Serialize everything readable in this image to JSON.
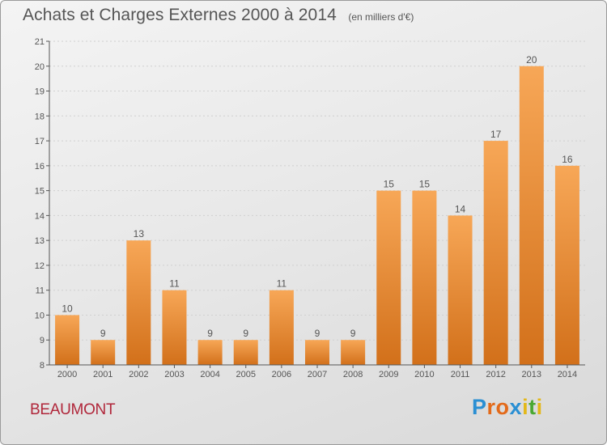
{
  "header": {
    "title": "Achats et Charges Externes 2000 à 2014",
    "subtitle": "(en milliers d'€)"
  },
  "commune": "BEAUMONT",
  "brand": {
    "letters": [
      {
        "ch": "P",
        "color": "#2a8fd3"
      },
      {
        "ch": "r",
        "color": "#e36a1a"
      },
      {
        "ch": "o",
        "color": "#e36a1a"
      },
      {
        "ch": "x",
        "color": "#2a8fd3"
      },
      {
        "ch": "i",
        "color": "#e3b81a"
      },
      {
        "ch": "t",
        "color": "#4aa832"
      },
      {
        "ch": "i",
        "color": "#e3b81a"
      }
    ]
  },
  "colors": {
    "bar_top": "#f7a757",
    "bar_bottom": "#d2701a",
    "axis": "#555555",
    "grid": "#d0d0d0",
    "title": "#555555",
    "commune": "#b0263a"
  },
  "chart_data": {
    "type": "bar",
    "title": "Achats et Charges Externes 2000 à 2014",
    "subtitle": "(en milliers d'€)",
    "xlabel": "",
    "ylabel": "",
    "categories": [
      "2000",
      "2001",
      "2002",
      "2003",
      "2004",
      "2005",
      "2006",
      "2007",
      "2008",
      "2009",
      "2010",
      "2011",
      "2012",
      "2013",
      "2014"
    ],
    "values": [
      10,
      9,
      13,
      11,
      9,
      9,
      11,
      9,
      9,
      15,
      15,
      14,
      17,
      20,
      16
    ],
    "ylim": [
      8,
      21
    ],
    "yticks": [
      8,
      9,
      10,
      11,
      12,
      13,
      14,
      15,
      16,
      17,
      18,
      19,
      20,
      21
    ],
    "grid": true,
    "legend": "none"
  }
}
